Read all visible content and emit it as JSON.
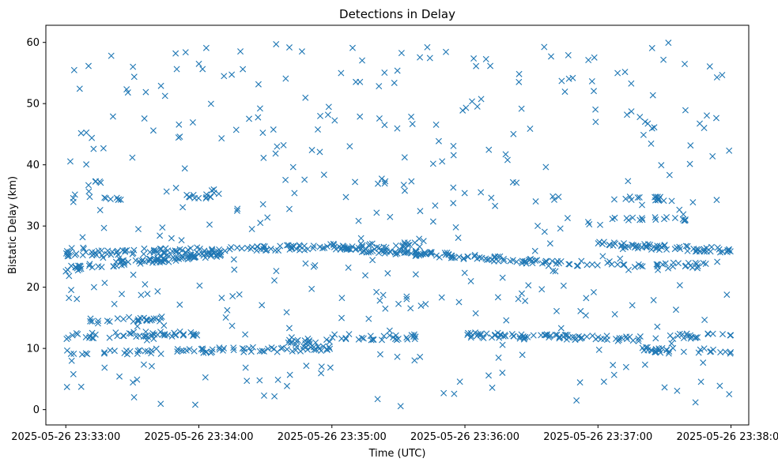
{
  "chart_data": {
    "type": "scatter",
    "title": "Detections in Delay",
    "xlabel": "Time (UTC)",
    "ylabel": "Bistatic Delay (km)",
    "marker": "x",
    "color": "#1f77b4",
    "xlim": [
      "2025-05-26 23:32:51",
      "2025-05-26 23:38:08"
    ],
    "ylim": [
      -2.5,
      62.8
    ],
    "x_ticks": [
      "2025-05-26 23:33:00",
      "2025-05-26 23:34:00",
      "2025-05-26 23:35:00",
      "2025-05-26 23:36:00",
      "2025-05-26 23:37:00",
      "2025-05-26 23:38:00"
    ],
    "y_ticks": [
      0,
      10,
      20,
      30,
      40,
      50,
      60
    ],
    "grid": false,
    "legend": "none",
    "x_range": [
      "2025-05-26 23:33:00",
      "2025-05-26 23:38:00"
    ],
    "bands": [
      {
        "delay_start": 23.0,
        "delay_end": 25.5,
        "from": "2025-05-26 23:33:00",
        "to": "2025-05-26 23:34:10",
        "count": 90
      },
      {
        "delay_start": 25.5,
        "delay_end": 27.0,
        "from": "2025-05-26 23:33:00",
        "to": "2025-05-26 23:35:40",
        "count": 140
      },
      {
        "delay_start": 26.5,
        "delay_end": 24.0,
        "from": "2025-05-26 23:35:00",
        "to": "2025-05-26 23:36:40",
        "count": 110
      },
      {
        "delay_start": 27.0,
        "delay_end": 26.0,
        "from": "2025-05-26 23:37:00",
        "to": "2025-05-26 23:38:00",
        "count": 70
      },
      {
        "delay_start": 24.0,
        "delay_end": 23.5,
        "from": "2025-05-26 23:36:40",
        "to": "2025-05-26 23:37:50",
        "count": 40
      },
      {
        "delay_start": 9.3,
        "delay_end": 10.0,
        "from": "2025-05-26 23:33:00",
        "to": "2025-05-26 23:35:00",
        "count": 80
      },
      {
        "delay_start": 12.0,
        "delay_end": 12.5,
        "from": "2025-05-26 23:33:00",
        "to": "2025-05-26 23:34:00",
        "count": 50
      },
      {
        "delay_start": 14.5,
        "delay_end": 14.8,
        "from": "2025-05-26 23:33:10",
        "to": "2025-05-26 23:33:45",
        "count": 25
      },
      {
        "delay_start": 11.0,
        "delay_end": 12.0,
        "from": "2025-05-26 23:34:40",
        "to": "2025-05-26 23:35:40",
        "count": 40
      },
      {
        "delay_start": 12.2,
        "delay_end": 11.5,
        "from": "2025-05-26 23:36:00",
        "to": "2025-05-26 23:37:20",
        "count": 80
      },
      {
        "delay_start": 9.8,
        "delay_end": 9.5,
        "from": "2025-05-26 23:37:20",
        "to": "2025-05-26 23:38:00",
        "count": 30
      },
      {
        "delay_start": 12.0,
        "delay_end": 12.0,
        "from": "2025-05-26 23:37:30",
        "to": "2025-05-26 23:38:00",
        "count": 20
      },
      {
        "delay_start": 34.7,
        "delay_end": 34.7,
        "from": "2025-05-26 23:33:00",
        "to": "2025-05-26 23:33:25",
        "count": 10
      },
      {
        "delay_start": 34.8,
        "delay_end": 35.1,
        "from": "2025-05-26 23:33:55",
        "to": "2025-05-26 23:34:10",
        "count": 12
      },
      {
        "delay_start": 34.5,
        "delay_end": 34.5,
        "from": "2025-05-26 23:37:05",
        "to": "2025-05-26 23:37:35",
        "count": 15
      },
      {
        "delay_start": 31.0,
        "delay_end": 31.3,
        "from": "2025-05-26 23:37:05",
        "to": "2025-05-26 23:37:40",
        "count": 15
      }
    ],
    "scattered_points": 420,
    "scattered_delay_range": [
      0.5,
      60
    ]
  }
}
